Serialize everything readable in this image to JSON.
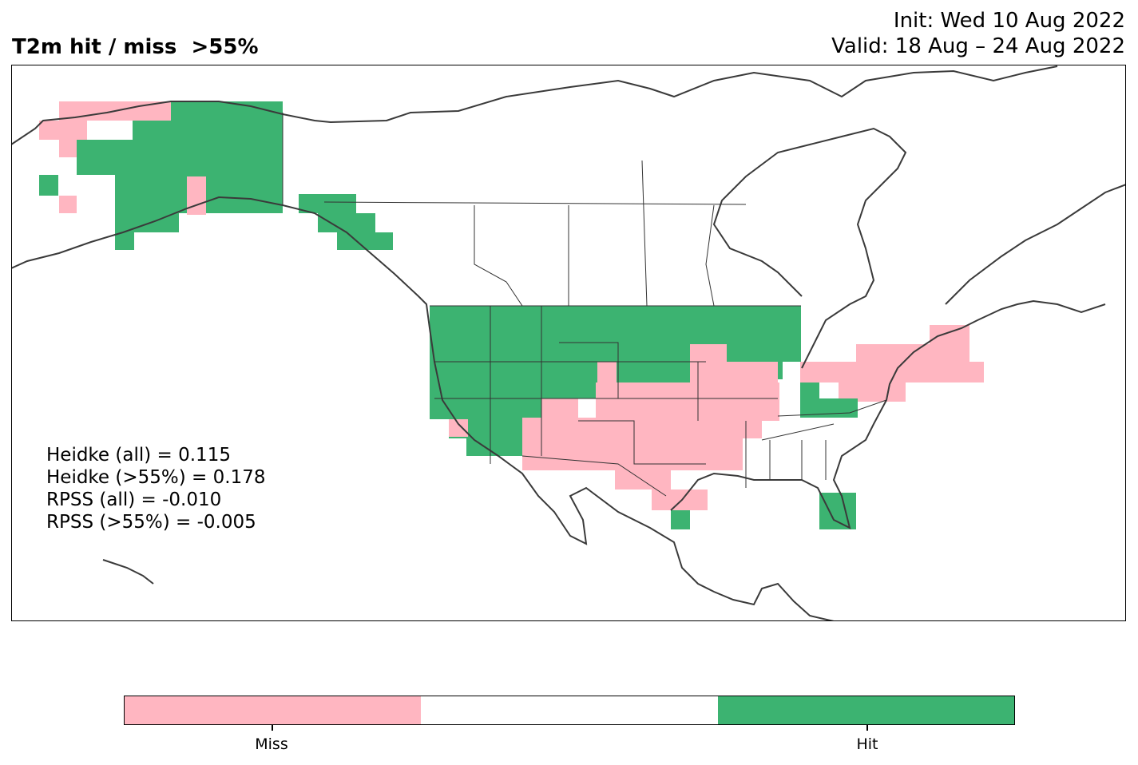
{
  "title": "T2m hit / miss  >55%",
  "init_line": "Init: Wed 10 Aug 2022",
  "valid_line": "Valid: 18 Aug – 24 Aug 2022",
  "stats": [
    "Heidke (all) = 0.115",
    "Heidke (>55%) = 0.178",
    "RPSS (all) = -0.010",
    "RPSS (>55%) = -0.005"
  ],
  "colorbar": {
    "colors": [
      "#ffb6c1",
      "#ffffff",
      "#3cb371"
    ],
    "labels": [
      "Miss",
      "Hit"
    ]
  },
  "colors": {
    "miss": "#ffb6c1",
    "hit": "#3cb371",
    "coast": "#3a3a3a",
    "border": "#333333"
  }
}
